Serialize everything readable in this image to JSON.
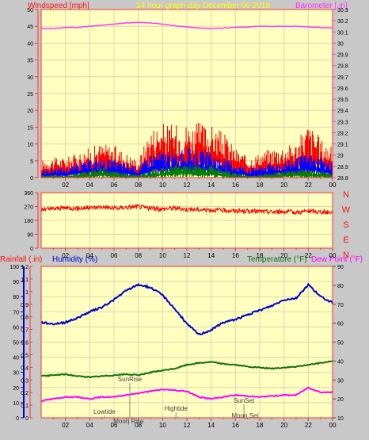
{
  "header": {
    "left": "Windspeed [mph]",
    "center": "24 hour graph day   December 06 2018",
    "right": "Barometer [.in]"
  },
  "colors": {
    "background": "#c8c8c8",
    "plot_bg": "#ffffc0",
    "grid": "#d8d8b0",
    "axis": "#ff3030",
    "wind": "#ff0000",
    "gust": "#0000ff",
    "avg": "#008000",
    "barometer": "#ff30ff",
    "humidity": "#0000cc",
    "temperature": "#107010",
    "dewpoint": "#ff00ff",
    "title_yellow": "#ffff00",
    "left_title": "#ff1010"
  },
  "time_ticks": [
    "02",
    "04",
    "06",
    "08",
    "10",
    "12",
    "14",
    "16",
    "18",
    "20",
    "22",
    "00"
  ],
  "chart_data": [
    {
      "type": "line",
      "x": [
        0,
        1,
        2,
        3,
        4,
        5,
        6,
        7,
        8,
        9,
        10,
        11,
        12,
        13,
        14,
        15,
        16,
        17,
        18,
        19,
        20,
        21,
        22,
        23,
        24
      ],
      "series": [
        {
          "name": "Windspeed [mph]",
          "axis": "left",
          "values": [
            3.5,
            4,
            4,
            5,
            6,
            7,
            6.5,
            5,
            3.5,
            10,
            11,
            10.5,
            11,
            11,
            10.5,
            9,
            6,
            4,
            5,
            6,
            6.5,
            7,
            11,
            8,
            6
          ]
        },
        {
          "name": "Gust",
          "axis": "left",
          "values": [
            1.5,
            2,
            2,
            3,
            3.5,
            4,
            3.5,
            3,
            2,
            5,
            5.5,
            5,
            6,
            5.5,
            5,
            4,
            3,
            2,
            2.5,
            3,
            3.5,
            4,
            5,
            4,
            3
          ]
        },
        {
          "name": "Average",
          "axis": "left",
          "values": [
            0.5,
            0.5,
            0.5,
            1,
            1.5,
            2,
            1.5,
            1,
            0.5,
            1.5,
            2,
            2.5,
            3,
            2.5,
            2.5,
            1.5,
            1,
            0.5,
            0.5,
            1,
            1.5,
            2,
            1.5,
            1.5,
            1
          ]
        },
        {
          "name": "Barometer [.in]",
          "axis": "right",
          "values": [
            30.13,
            30.13,
            30.14,
            30.14,
            30.15,
            30.16,
            30.17,
            30.18,
            30.185,
            30.18,
            30.17,
            30.155,
            30.145,
            30.135,
            30.13,
            30.135,
            30.14,
            30.145,
            30.15,
            30.15,
            30.15,
            30.15,
            30.145,
            30.14,
            30.135
          ]
        }
      ],
      "y_left": {
        "min": 0,
        "max": 50,
        "ticks": [
          0,
          5,
          10,
          15,
          20,
          25,
          30,
          35,
          40,
          45,
          50
        ]
      },
      "y_right": {
        "min": 28.8,
        "max": 30.3,
        "ticks": [
          "28.8",
          "28.9",
          "29",
          "29.1",
          "29.2",
          "29.3",
          "29.4",
          "29.5",
          "29.6",
          "29.7",
          "29.8",
          "29.9",
          "30",
          "30.1",
          "30.2",
          "30.3"
        ]
      },
      "title": "24 hour graph day   December 06 2018",
      "ylabel": "Windspeed [mph]",
      "ylabel_right": "Barometer [.in]"
    },
    {
      "type": "line",
      "x": [
        0,
        1,
        2,
        3,
        4,
        5,
        6,
        7,
        8,
        9,
        10,
        11,
        12,
        13,
        14,
        15,
        16,
        17,
        18,
        19,
        20,
        21,
        22,
        23,
        24
      ],
      "series": [
        {
          "name": "Wind Direction",
          "values": [
            250,
            255,
            262,
            258,
            262,
            268,
            258,
            265,
            270,
            258,
            255,
            260,
            252,
            250,
            248,
            245,
            242,
            240,
            238,
            235,
            238,
            232,
            240,
            235,
            232
          ]
        }
      ],
      "y_left": {
        "min": 0,
        "max": 360,
        "ticks": [
          0,
          90,
          180,
          270,
          360
        ]
      },
      "compass": [
        "N",
        "W",
        "S",
        "E",
        "N"
      ]
    },
    {
      "type": "line",
      "x": [
        0,
        1,
        2,
        3,
        4,
        5,
        6,
        7,
        8,
        9,
        10,
        11,
        12,
        13,
        14,
        15,
        16,
        17,
        18,
        19,
        20,
        21,
        22,
        23,
        24
      ],
      "series": [
        {
          "name": "Humidity (%)",
          "axis": "left",
          "values": [
            63,
            62,
            63,
            66,
            70,
            73,
            78,
            84,
            88,
            86,
            81,
            72,
            62,
            55,
            58,
            63,
            65,
            68,
            71,
            74,
            78,
            79,
            88,
            80,
            76
          ]
        },
        {
          "name": "Temperature (°F)",
          "axis": "right",
          "values": [
            32,
            32.5,
            33,
            32,
            31.5,
            32,
            32.5,
            33,
            32.5,
            34,
            35,
            36,
            38,
            39,
            39.5,
            38.5,
            38,
            37,
            36.5,
            36,
            36.5,
            37,
            38,
            39,
            40
          ]
        },
        {
          "name": "Dew Point (°F)",
          "axis": "right",
          "values": [
            19,
            20,
            21,
            21,
            20,
            21,
            21,
            22,
            23,
            24,
            25,
            24.5,
            24,
            21,
            20,
            21,
            22,
            21.5,
            21,
            21.5,
            22,
            22,
            26,
            23.5,
            23.5
          ]
        }
      ],
      "y_left": {
        "min": 0,
        "max": 100,
        "ticks": [
          0,
          10,
          20,
          30,
          40,
          50,
          60,
          70,
          80,
          90,
          100
        ]
      },
      "y_rain": {
        "ticks": [
          "0",
          "0.1",
          "0.2",
          "0.3",
          "0.4",
          "0.5",
          "0.6",
          "0.7",
          "0.8",
          "0.9",
          "1",
          "1.1",
          "1.2"
        ]
      },
      "y_right": {
        "min": 10,
        "max": 90,
        "ticks": [
          10,
          20,
          30,
          40,
          50,
          60,
          70,
          80,
          90
        ]
      },
      "labels": {
        "rain": "Rainfall (.in)",
        "humidity": "Humidity (%)",
        "temperature": "Temperature (°F)",
        "dewpoint": "Dew Point (°F)"
      },
      "annotations": [
        {
          "text": "Lowtide",
          "x": 5.2
        },
        {
          "text": "SunRise",
          "x": 7.3
        },
        {
          "text": "Moon Rise",
          "x": 7.2
        },
        {
          "text": "Hightide",
          "x": 11.1
        },
        {
          "text": "SunSet",
          "x": 16.7
        },
        {
          "text": "Moon Set",
          "x": 16.8
        }
      ]
    }
  ]
}
